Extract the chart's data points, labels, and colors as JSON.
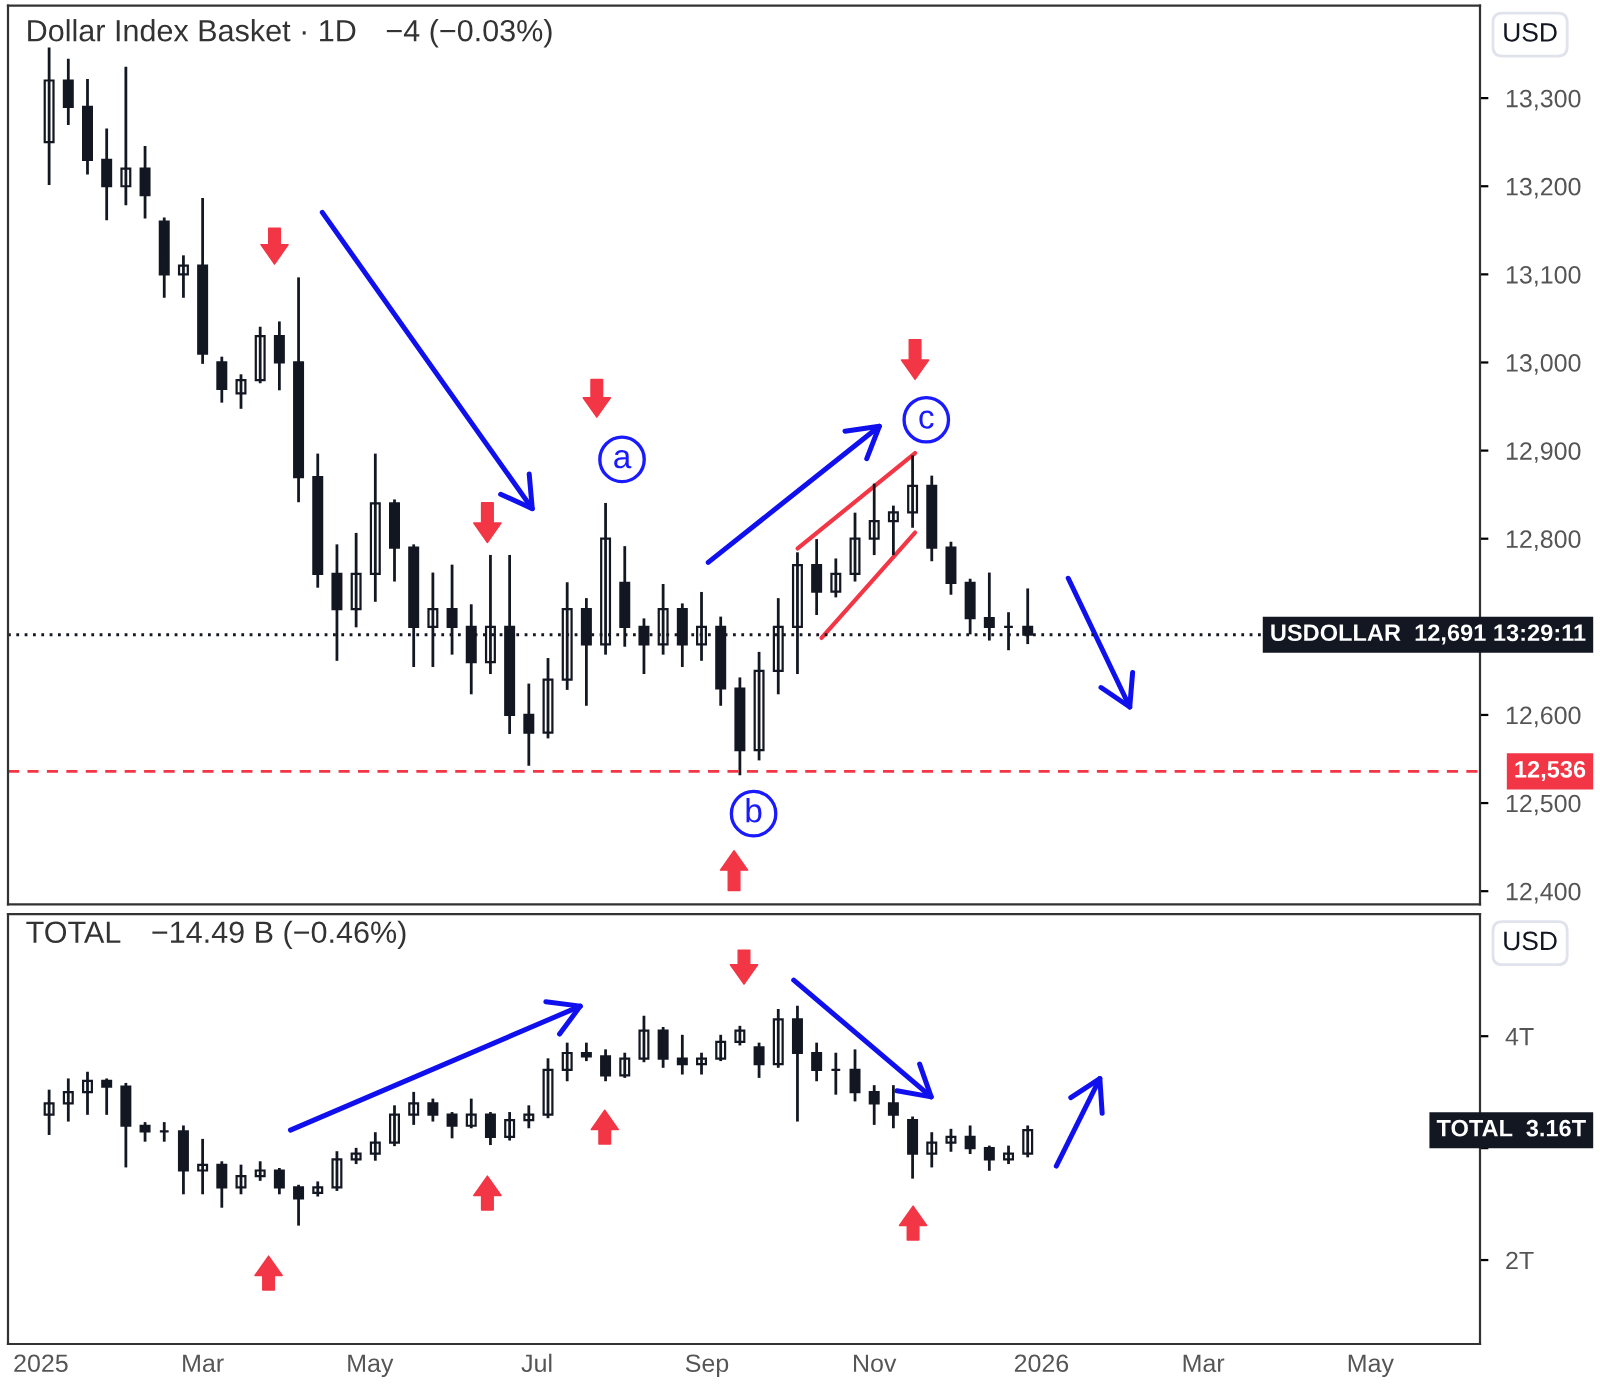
{
  "chart_data": [
    {
      "type": "candlestick",
      "title": "Dollar Index Basket · 1D",
      "subtitle": "−4 (−0.03%)",
      "color": "#131722",
      "x": [
        "2025-01-04",
        "2025-01-11",
        "2025-01-18",
        "2025-01-25",
        "2025-02-01",
        "2025-02-08",
        "2025-02-15",
        "2025-02-22",
        "2025-03-01",
        "2025-03-08",
        "2025-03-15",
        "2025-03-22",
        "2025-03-29",
        "2025-04-05",
        "2025-04-12",
        "2025-04-19",
        "2025-04-26",
        "2025-05-03",
        "2025-05-10",
        "2025-05-17",
        "2025-05-24",
        "2025-05-31",
        "2025-06-07",
        "2025-06-14",
        "2025-06-21",
        "2025-06-28",
        "2025-07-05",
        "2025-07-12",
        "2025-07-19",
        "2025-07-26",
        "2025-08-02",
        "2025-08-09",
        "2025-08-16",
        "2025-08-23",
        "2025-08-30",
        "2025-09-06",
        "2025-09-13",
        "2025-09-20",
        "2025-09-27",
        "2025-10-04",
        "2025-10-11",
        "2025-10-18",
        "2025-10-25",
        "2025-11-01",
        "2025-11-08",
        "2025-11-15",
        "2025-11-22",
        "2025-11-29",
        "2025-12-06",
        "2025-12-13",
        "2025-12-20",
        "2025-12-27"
      ],
      "ohlc": [
        [
          13250,
          13356,
          13203,
          13320
        ],
        [
          13320,
          13343,
          13271,
          13290
        ],
        [
          13290,
          13320,
          13215,
          13230
        ],
        [
          13230,
          13264,
          13163,
          13200
        ],
        [
          13200,
          13334,
          13180,
          13220
        ],
        [
          13220,
          13244,
          13165,
          13190
        ],
        [
          13160,
          13163,
          13075,
          13100
        ],
        [
          13100,
          13120,
          13075,
          13110
        ],
        [
          13110,
          13185,
          13000,
          13010
        ],
        [
          13000,
          13005,
          12956,
          12970
        ],
        [
          12965,
          12985,
          12949,
          12980
        ],
        [
          12980,
          13039,
          12978,
          13030
        ],
        [
          13030,
          13045,
          12970,
          13000
        ],
        [
          13000,
          13095,
          12843,
          12870
        ],
        [
          12870,
          12895,
          12746,
          12760
        ],
        [
          12760,
          12792,
          12663,
          12720
        ],
        [
          12720,
          12805,
          12701,
          12760
        ],
        [
          12760,
          12895,
          12730,
          12840
        ],
        [
          12840,
          12843,
          12753,
          12790
        ],
        [
          12790,
          12792,
          12656,
          12700
        ],
        [
          12700,
          12760,
          12656,
          12720
        ],
        [
          12720,
          12769,
          12670,
          12700
        ],
        [
          12700,
          12724,
          12625,
          12660
        ],
        [
          12660,
          12780,
          12648,
          12700
        ],
        [
          12700,
          12780,
          12580,
          12600
        ],
        [
          12600,
          12634,
          12544,
          12580
        ],
        [
          12580,
          12663,
          12575,
          12640
        ],
        [
          12640,
          12749,
          12630,
          12720
        ],
        [
          12720,
          12731,
          12612,
          12680
        ],
        [
          12680,
          12839,
          12670,
          12800
        ],
        [
          12750,
          12790,
          12679,
          12700
        ],
        [
          12700,
          12708,
          12648,
          12680
        ],
        [
          12680,
          12747,
          12670,
          12720
        ],
        [
          12720,
          12725,
          12656,
          12680
        ],
        [
          12680,
          12738,
          12663,
          12700
        ],
        [
          12700,
          12710,
          12612,
          12630
        ],
        [
          12630,
          12641,
          12533,
          12560
        ],
        [
          12560,
          12670,
          12550,
          12650
        ],
        [
          12650,
          12731,
          12625,
          12700
        ],
        [
          12700,
          12783,
          12648,
          12770
        ],
        [
          12770,
          12798,
          12715,
          12740
        ],
        [
          12740,
          12776,
          12735,
          12760
        ],
        [
          12760,
          12828,
          12753,
          12800
        ],
        [
          12800,
          12861,
          12783,
          12820
        ],
        [
          12820,
          12836,
          12783,
          12830
        ],
        [
          12830,
          12893,
          12814,
          12860
        ],
        [
          12860,
          12870,
          12776,
          12790
        ],
        [
          12790,
          12795,
          12738,
          12750
        ],
        [
          12750,
          12753,
          12693,
          12710
        ],
        [
          12710,
          12760,
          12686,
          12700
        ],
        [
          12700,
          12715,
          12675,
          12700
        ],
        [
          12700,
          12742,
          12682,
          12691
        ]
      ],
      "xlim": [
        "2024-12-20",
        "2026-06-10"
      ],
      "ylim": [
        12385,
        13405
      ],
      "yticks": [
        {
          "value": 12400,
          "label": "12,400"
        },
        {
          "value": 12500,
          "label": "12,500"
        },
        {
          "value": 12600,
          "label": "12,600"
        },
        {
          "value": 12700,
          "label": null
        },
        {
          "value": 12800,
          "label": "12,800"
        },
        {
          "value": 12900,
          "label": "12,900"
        },
        {
          "value": 13000,
          "label": "13,000"
        },
        {
          "value": 13100,
          "label": "13,100"
        },
        {
          "value": 13200,
          "label": "13,200"
        },
        {
          "value": 13300,
          "label": "13,300"
        }
      ],
      "tick_labels": "y",
      "ref_lines": [
        {
          "axis": "y",
          "value": 12691,
          "label": "USDOLLAR  12,691 13:29:11",
          "line_style": "dotted",
          "color": "#131722"
        },
        {
          "axis": "y",
          "value": 12536,
          "label": "12,536",
          "line_style": "dashed",
          "color": "#f23645"
        }
      ],
      "annotations": [
        {
          "text": "a",
          "x": "2025-08-01",
          "y": 12890
        },
        {
          "text": "b",
          "x": "2025-09-18",
          "y": 12488
        },
        {
          "text": "c",
          "x": "2025-11-20",
          "y": 12935
        },
        "USD"
      ]
    },
    {
      "type": "candlestick",
      "title": "TOTAL",
      "subtitle": "−14.49 B (−0.46%)",
      "color": "#131722",
      "x": [
        "2025-01-04",
        "2025-01-11",
        "2025-01-18",
        "2025-01-25",
        "2025-02-01",
        "2025-02-08",
        "2025-02-15",
        "2025-02-22",
        "2025-03-01",
        "2025-03-08",
        "2025-03-15",
        "2025-03-22",
        "2025-03-29",
        "2025-04-05",
        "2025-04-12",
        "2025-04-19",
        "2025-04-26",
        "2025-05-03",
        "2025-05-10",
        "2025-05-17",
        "2025-05-24",
        "2025-05-31",
        "2025-06-07",
        "2025-06-14",
        "2025-06-21",
        "2025-06-28",
        "2025-07-05",
        "2025-07-12",
        "2025-07-19",
        "2025-07-26",
        "2025-08-02",
        "2025-08-09",
        "2025-08-16",
        "2025-08-23",
        "2025-08-30",
        "2025-09-06",
        "2025-09-13",
        "2025-09-20",
        "2025-09-27",
        "2025-10-04",
        "2025-10-11",
        "2025-10-18",
        "2025-10-25",
        "2025-11-01",
        "2025-11-08",
        "2025-11-15",
        "2025-11-22",
        "2025-11-29",
        "2025-12-06",
        "2025-12-13",
        "2025-12-20",
        "2025-12-27"
      ],
      "ohlc": [
        [
          3.3,
          3.51,
          3.13,
          3.4
        ],
        [
          3.4,
          3.61,
          3.25,
          3.5
        ],
        [
          3.5,
          3.67,
          3.31,
          3.6
        ],
        [
          3.6,
          3.61,
          3.31,
          3.55
        ],
        [
          3.55,
          3.57,
          2.84,
          3.2
        ],
        [
          3.2,
          3.22,
          3.07,
          3.15
        ],
        [
          3.15,
          3.22,
          3.07,
          3.15
        ],
        [
          3.15,
          3.19,
          2.6,
          2.8
        ],
        [
          2.8,
          3.07,
          2.6,
          2.85
        ],
        [
          2.85,
          2.87,
          2.48,
          2.65
        ],
        [
          2.65,
          2.84,
          2.6,
          2.75
        ],
        [
          2.75,
          2.87,
          2.72,
          2.8
        ],
        [
          2.8,
          2.81,
          2.6,
          2.65
        ],
        [
          2.65,
          2.66,
          2.32,
          2.55
        ],
        [
          2.6,
          2.69,
          2.58,
          2.65
        ],
        [
          2.65,
          2.96,
          2.63,
          2.9
        ],
        [
          2.9,
          2.99,
          2.87,
          2.95
        ],
        [
          2.95,
          3.13,
          2.9,
          3.05
        ],
        [
          3.05,
          3.37,
          3.03,
          3.3
        ],
        [
          3.3,
          3.49,
          3.22,
          3.4
        ],
        [
          3.4,
          3.43,
          3.25,
          3.3
        ],
        [
          3.3,
          3.31,
          3.1,
          3.2
        ],
        [
          3.2,
          3.43,
          3.19,
          3.3
        ],
        [
          3.3,
          3.31,
          3.04,
          3.1
        ],
        [
          3.1,
          3.31,
          3.08,
          3.25
        ],
        [
          3.25,
          3.37,
          3.19,
          3.3
        ],
        [
          3.3,
          3.79,
          3.28,
          3.7
        ],
        [
          3.7,
          3.93,
          3.61,
          3.85
        ],
        [
          3.85,
          3.93,
          3.79,
          3.82
        ],
        [
          3.82,
          3.87,
          3.61,
          3.65
        ],
        [
          3.65,
          3.84,
          3.64,
          3.8
        ],
        [
          3.8,
          4.17,
          3.78,
          4.05
        ],
        [
          4.05,
          4.07,
          3.73,
          3.8
        ],
        [
          3.8,
          4.0,
          3.67,
          3.75
        ],
        [
          3.75,
          3.84,
          3.67,
          3.8
        ],
        [
          3.8,
          4.0,
          3.79,
          3.95
        ],
        [
          3.95,
          4.08,
          3.93,
          4.05
        ],
        [
          3.9,
          3.93,
          3.64,
          3.75
        ],
        [
          3.75,
          4.23,
          3.73,
          4.15
        ],
        [
          4.15,
          4.26,
          3.25,
          3.85
        ],
        [
          3.85,
          3.93,
          3.61,
          3.7
        ],
        [
          3.7,
          3.84,
          3.49,
          3.7
        ],
        [
          3.7,
          3.87,
          3.43,
          3.5
        ],
        [
          3.5,
          3.55,
          3.22,
          3.4
        ],
        [
          3.4,
          3.55,
          3.19,
          3.3
        ],
        [
          3.25,
          3.27,
          2.74,
          2.95
        ],
        [
          2.95,
          3.13,
          2.84,
          3.05
        ],
        [
          3.05,
          3.16,
          2.98,
          3.1
        ],
        [
          3.1,
          3.19,
          2.96,
          3.0
        ],
        [
          3.0,
          3.01,
          2.81,
          2.9
        ],
        [
          2.9,
          3.01,
          2.87,
          2.95
        ],
        [
          2.95,
          3.19,
          2.93,
          3.16
        ]
      ],
      "xlim": [
        "2024-12-20",
        "2026-06-10"
      ],
      "xticks": [
        {
          "value": "2025-01-01",
          "label": "2025"
        },
        {
          "value": "2025-03-01",
          "label": "Mar"
        },
        {
          "value": "2025-05-01",
          "label": "May"
        },
        {
          "value": "2025-07-01",
          "label": "Jul"
        },
        {
          "value": "2025-09-01",
          "label": "Sep"
        },
        {
          "value": "2025-11-01",
          "label": "Nov"
        },
        {
          "value": "2026-01-01",
          "label": "2026"
        },
        {
          "value": "2026-03-01",
          "label": "Mar"
        },
        {
          "value": "2026-05-01",
          "label": "May"
        }
      ],
      "ylim": [
        1.25,
        5.09
      ],
      "yticks": [
        {
          "value": 2,
          "label": "2T"
        },
        {
          "value": 3,
          "label": null
        },
        {
          "value": 4,
          "label": "4T"
        }
      ],
      "annotations": [
        "USD",
        "TOTAL  3.16T"
      ]
    }
  ]
}
